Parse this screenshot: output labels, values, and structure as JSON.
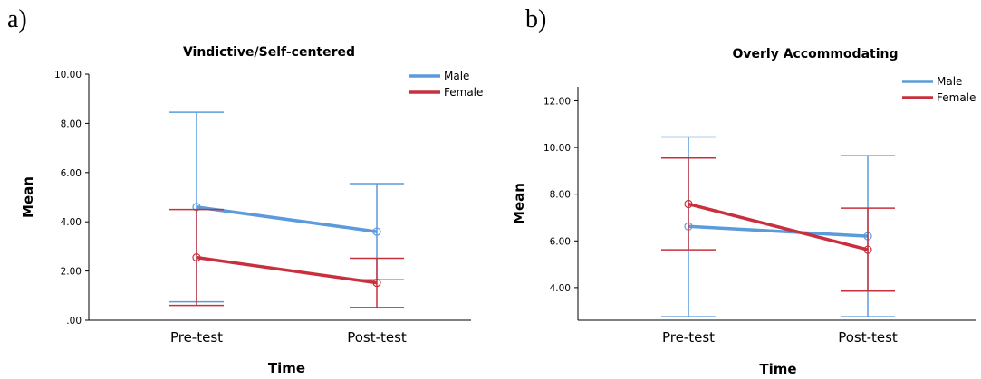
{
  "panels": [
    {
      "label": "a)"
    },
    {
      "label": "b)"
    }
  ],
  "colors": {
    "male": "#5b9bdc",
    "female": "#c8303e"
  },
  "chart_data": [
    {
      "type": "line",
      "title": "Vindictive/Self-centered",
      "xlabel": "Time",
      "ylabel": "Mean",
      "categories": [
        "Pre-test",
        "Post-test"
      ],
      "ylim": [
        0,
        10
      ],
      "yticks": [
        0,
        2,
        4,
        6,
        8,
        10
      ],
      "ytick_labels": [
        ".00",
        "2.00",
        "4.00",
        "6.00",
        "8.00",
        "10.00"
      ],
      "legend": {
        "position": "top-right"
      },
      "series": [
        {
          "name": "Male",
          "color": "#5b9bdc",
          "values": [
            4.6,
            3.6
          ],
          "err_low": [
            0.75,
            1.65
          ],
          "err_high": [
            8.45,
            5.55
          ]
        },
        {
          "name": "Female",
          "color": "#c8303e",
          "values": [
            2.55,
            1.52
          ],
          "err_low": [
            0.6,
            0.52
          ],
          "err_high": [
            4.5,
            2.52
          ]
        }
      ]
    },
    {
      "type": "line",
      "title": "Overly Accommodating",
      "xlabel": "Time",
      "ylabel": "Mean",
      "categories": [
        "Pre-test",
        "Post-test"
      ],
      "ylim": [
        2.6,
        12.6
      ],
      "yticks": [
        4,
        6,
        8,
        10,
        12
      ],
      "ytick_labels": [
        "4.00",
        "6.00",
        "8.00",
        "10.00",
        "12.00"
      ],
      "legend": {
        "position": "top-right"
      },
      "series": [
        {
          "name": "Male",
          "color": "#5b9bdc",
          "values": [
            6.62,
            6.2
          ],
          "err_low": [
            2.75,
            2.75
          ],
          "err_high": [
            10.45,
            9.65
          ]
        },
        {
          "name": "Female",
          "color": "#c8303e",
          "values": [
            7.58,
            5.62
          ],
          "err_low": [
            5.62,
            3.85
          ],
          "err_high": [
            9.55,
            7.4
          ]
        }
      ]
    }
  ]
}
